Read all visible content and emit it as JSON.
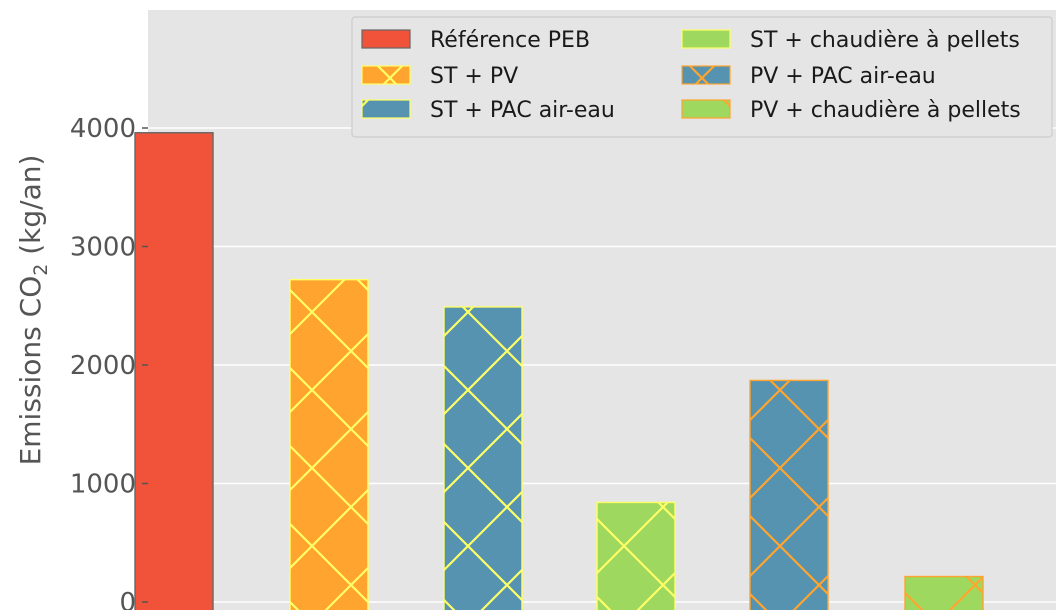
{
  "chart_data": {
    "type": "bar",
    "title": "",
    "xlabel": "",
    "ylabel_prefix": "Emissions CO",
    "ylabel_subscript": "2",
    "ylabel_suffix": " (kg/an)",
    "ylim": [
      0,
      4900
    ],
    "yticks": [
      "0",
      "1000",
      "2000",
      "3000",
      "4000"
    ],
    "grid": true,
    "legend_position": "top-right",
    "series": [
      {
        "name": "Référence PEB",
        "value": 3960,
        "color": "#f0533a",
        "hatch": "none",
        "hatch_color": "#666666"
      },
      {
        "name": "ST + PV",
        "value": 2720,
        "color": "#ffa42e",
        "hatch": "diagonal-cross",
        "hatch_color": "#ffff66"
      },
      {
        "name": "ST + PAC air-eau",
        "value": 2490,
        "color": "#5693b0",
        "hatch": "diagonal-cross",
        "hatch_color": "#ffff66"
      },
      {
        "name": "ST + chaudière à pellets",
        "value": 840,
        "color": "#9ed85e",
        "hatch": "diagonal-cross",
        "hatch_color": "#ffff66"
      },
      {
        "name": "PV + PAC air-eau",
        "value": 1870,
        "color": "#5693b0",
        "hatch": "diagonal-cross",
        "hatch_color": "#ffa42e"
      },
      {
        "name": "PV + chaudière à pellets",
        "value": 215,
        "color": "#9ed85e",
        "hatch": "diagonal-cross",
        "hatch_color": "#ffa42e"
      }
    ]
  }
}
